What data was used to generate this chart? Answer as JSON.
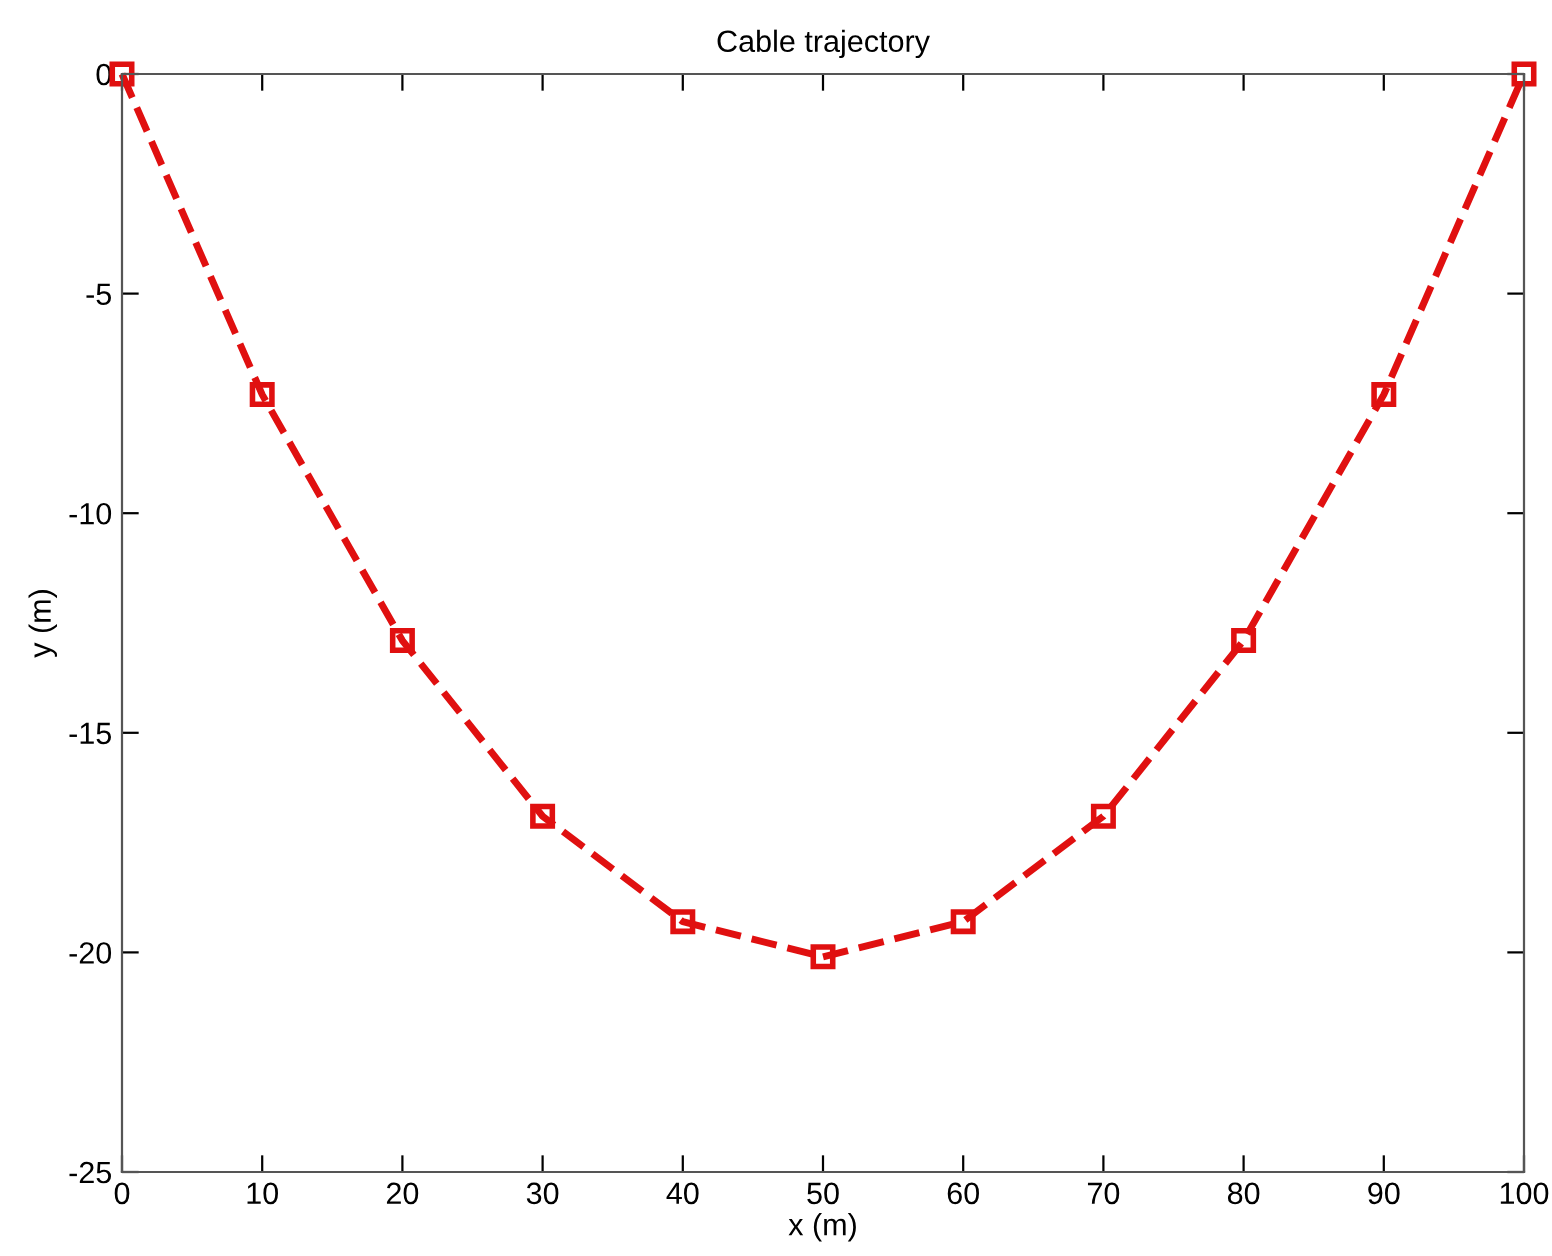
{
  "chart_data": {
    "type": "line",
    "title": "Cable trajectory",
    "xlabel": "x (m)",
    "ylabel": "y (m)",
    "x": [
      0,
      10,
      20,
      30,
      40,
      50,
      60,
      70,
      80,
      90,
      100
    ],
    "series": [
      {
        "color": "#e01010",
        "values": [
          0,
          -7.3,
          -12.9,
          -16.9,
          -19.3,
          -20.1,
          -19.3,
          -16.9,
          -12.9,
          -7.3,
          0
        ]
      }
    ],
    "xlim": [
      0,
      100
    ],
    "ylim": [
      -25,
      0
    ],
    "xticks": [
      0,
      10,
      20,
      30,
      40,
      50,
      60,
      70,
      80,
      90,
      100
    ],
    "yticks": [
      -25,
      -20,
      -15,
      -10,
      -5,
      0
    ],
    "grid": false,
    "marker": "square",
    "line_style": "dashed"
  }
}
